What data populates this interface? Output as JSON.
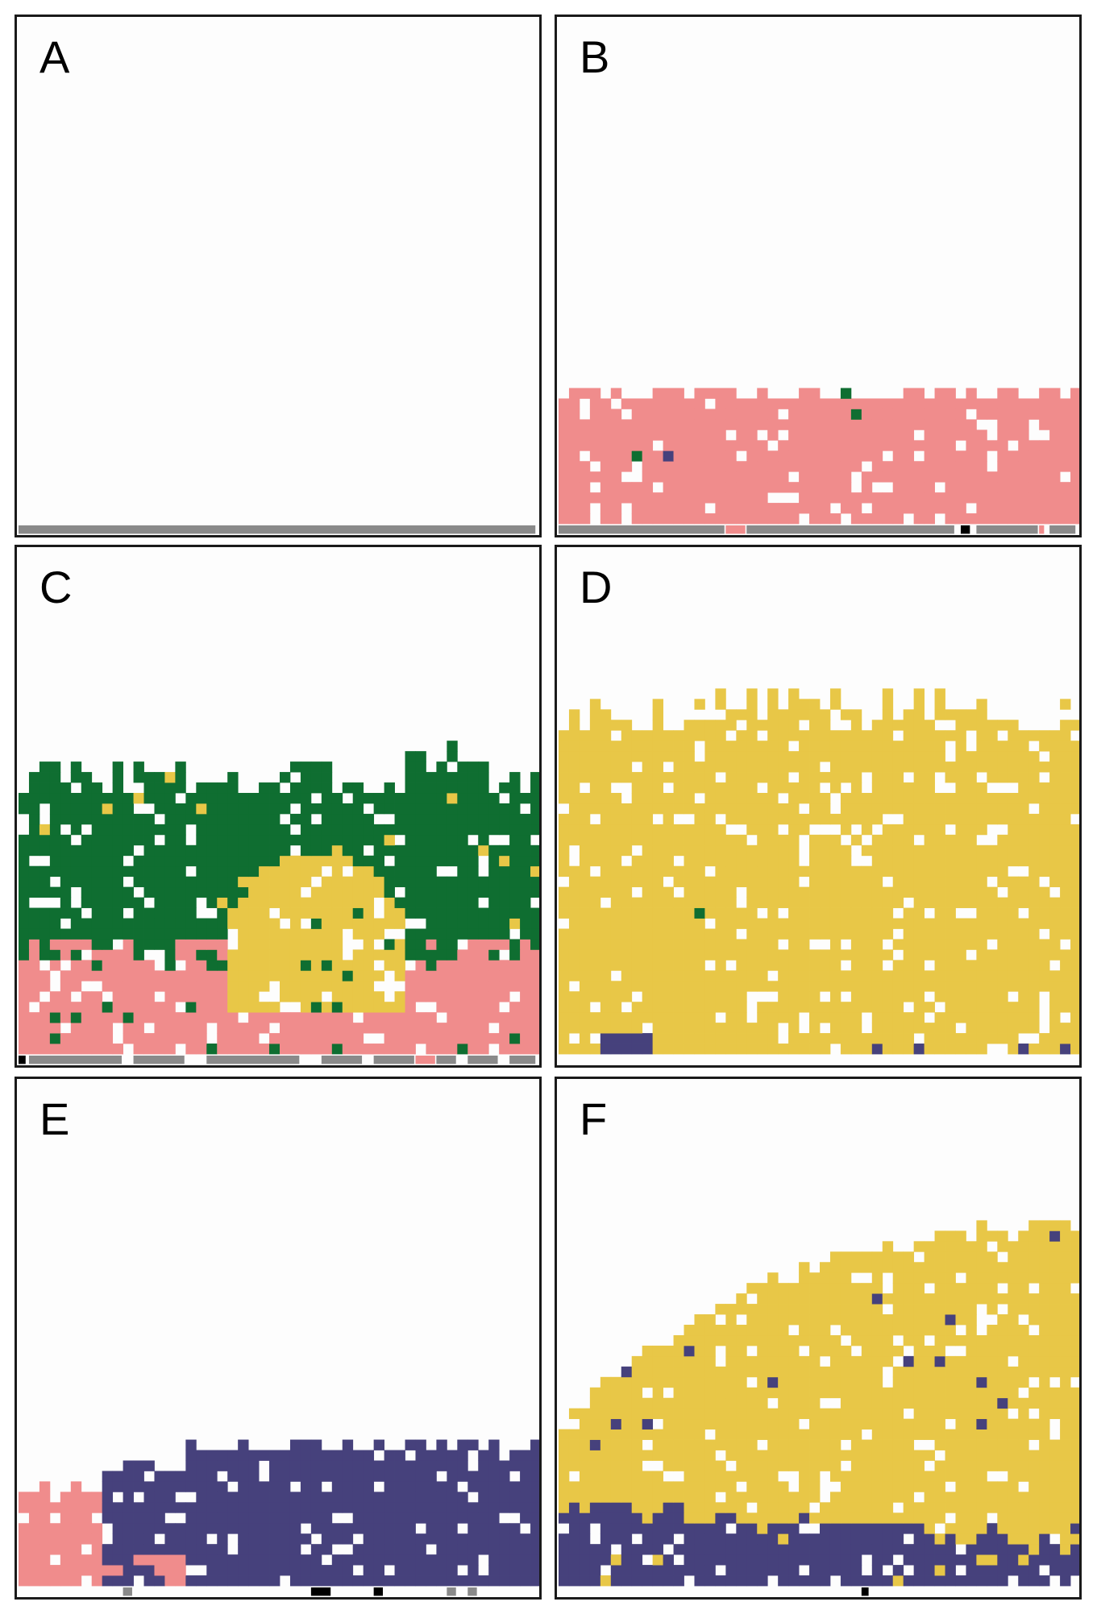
{
  "colors": {
    "background": "#fdfdfd",
    "border": "#1a1a1a",
    "substrate": "#8a8a8a",
    "substrate_dark": "#000000",
    "pink": "#f08c8c",
    "green": "#0f6e31",
    "yellow": "#e8c747",
    "purple": "#46417c"
  },
  "panels": [
    {
      "id": "A",
      "label": "A",
      "scenario": "substrate-only"
    },
    {
      "id": "B",
      "label": "B",
      "scenario": "pink-layer-with-rare-green-and-purple"
    },
    {
      "id": "C",
      "label": "C",
      "scenario": "pink-base-green-upper-yellow-center"
    },
    {
      "id": "D",
      "label": "D",
      "scenario": "yellow-dominant-purple-base"
    },
    {
      "id": "E",
      "label": "E",
      "scenario": "purple-dominant-pink-left"
    },
    {
      "id": "F",
      "label": "F",
      "scenario": "yellow-dome-over-purple-base"
    }
  ]
}
